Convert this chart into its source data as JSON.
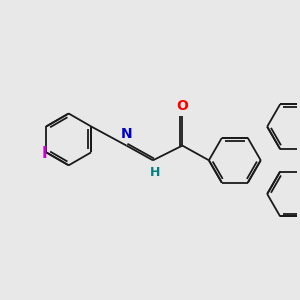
{
  "background_color": "#e8e8e8",
  "bond_color": "#1a1a1a",
  "bond_width": 1.3,
  "O_color": "#ff0000",
  "N_color": "#0000cc",
  "H_color": "#008080",
  "I_color": "#cc00cc",
  "font_size": 10,
  "fig_width": 3.0,
  "fig_height": 3.0,
  "dpi": 100,
  "xlim": [
    0,
    10
  ],
  "ylim": [
    0,
    10
  ]
}
